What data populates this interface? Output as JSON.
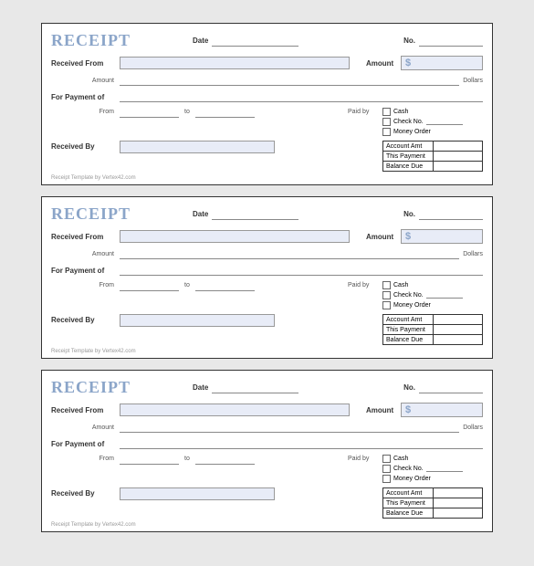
{
  "colors": {
    "title": "#8ba5c9",
    "fill": "#e8ecf7",
    "border": "#333333",
    "bg": "#e8e8e8"
  },
  "receipt": {
    "title": "RECEIPT",
    "date_lbl": "Date",
    "no_lbl": "No.",
    "received_from_lbl": "Received From",
    "amount_top_lbl": "Amount",
    "amount_sm_lbl": "Amount",
    "dollar_sign": "$",
    "dollars_lbl": "Dollars",
    "for_payment_lbl": "For Payment of",
    "from_lbl": "From",
    "to_lbl": "to",
    "paid_by_lbl": "Paid by",
    "cash_lbl": "Cash",
    "check_lbl": "Check No.",
    "money_order_lbl": "Money Order",
    "received_by_lbl": "Received By",
    "account_amt_lbl": "Account Amt",
    "this_payment_lbl": "This Payment",
    "balance_due_lbl": "Balance Due",
    "footer": "Receipt Template by Vertex42.com"
  },
  "copies": 3
}
